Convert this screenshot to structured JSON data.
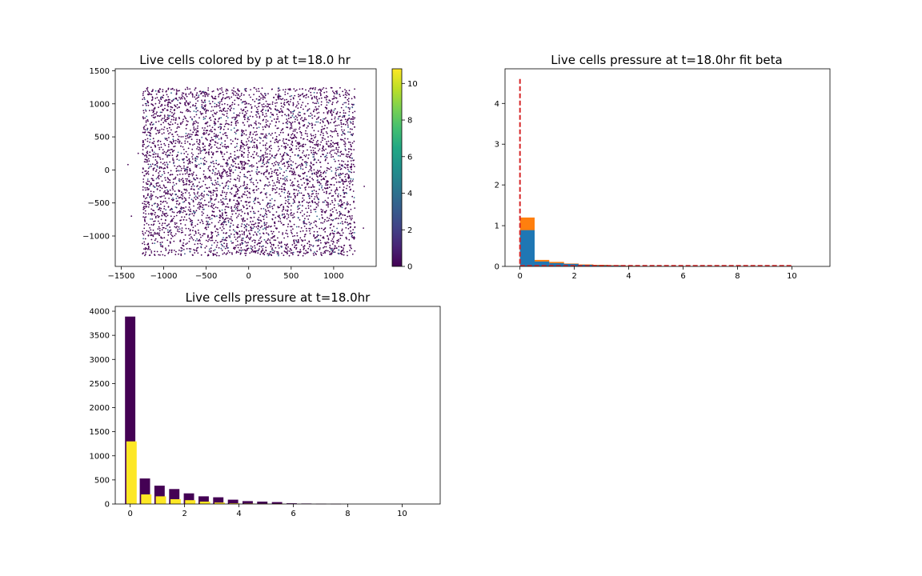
{
  "chart_data": [
    {
      "type": "scatter",
      "title": "Live cells colored by p at t=18.0 hr",
      "xlabel": "",
      "ylabel": "",
      "xlim": [
        -1570,
        1500
      ],
      "ylim": [
        -1460,
        1530
      ],
      "xticks": [
        -1500,
        -1000,
        -500,
        0,
        500,
        1000
      ],
      "yticks": [
        -1000,
        -500,
        0,
        500,
        1000,
        1500
      ],
      "point_distribution": {
        "count": 4600,
        "x_range": [
          -1250,
          1250
        ],
        "y_range": [
          -1300,
          1250
        ],
        "outliers": [
          [
            -1420,
            80
          ],
          [
            -1300,
            250
          ],
          [
            -1380,
            -700
          ],
          [
            1360,
            -250
          ],
          [
            1350,
            -880
          ]
        ]
      },
      "colormap": "viridis",
      "colorbar": {
        "min": 0,
        "max": 10.8,
        "ticks": [
          0,
          2,
          4,
          6,
          8,
          10
        ]
      },
      "colors": {
        "low": "#440154",
        "mid": "#31688e",
        "high": "#fde725"
      }
    },
    {
      "type": "bar",
      "title": "Live cells pressure at t=18.0hr fit beta",
      "xlabel": "",
      "ylabel": "",
      "xlim": [
        -0.55,
        11.4
      ],
      "ylim": [
        0,
        4.85
      ],
      "xticks": [
        0,
        2,
        4,
        6,
        8,
        10
      ],
      "yticks": [
        0,
        1,
        2,
        3,
        4
      ],
      "bin_width": 0.54,
      "bin_left": [
        0,
        0.54,
        1.08,
        1.62,
        2.16,
        2.7,
        3.24,
        3.78,
        4.32,
        4.86,
        5.4,
        5.94
      ],
      "series": [
        {
          "color": "#ff7f0e",
          "values": [
            1.2,
            0.16,
            0.11,
            0.07,
            0.05,
            0.04,
            0.03,
            0.015,
            0.01,
            0.005,
            0.003,
            0.002
          ]
        },
        {
          "color": "#1f77b4",
          "values": [
            0.89,
            0.12,
            0.08,
            0.06,
            0.04,
            0.025,
            0.02,
            0.01,
            0.006,
            0.003,
            0.002,
            0.001
          ]
        }
      ],
      "fit_line": {
        "color": "#d62728",
        "style": "dashed",
        "spike_x": 0,
        "spike_top": 4.6,
        "x_end": 10.0
      }
    },
    {
      "type": "bar",
      "title": "Live cells pressure at t=18.0hr",
      "xlabel": "",
      "ylabel": "",
      "xlim": [
        -0.55,
        11.4
      ],
      "ylim": [
        0,
        4100
      ],
      "xticks": [
        0,
        2,
        4,
        6,
        8,
        10
      ],
      "yticks": [
        0,
        500,
        1000,
        1500,
        2000,
        2500,
        3000,
        3500,
        4000
      ],
      "series": [
        {
          "color": "#440154",
          "x": [
            0,
            0.54,
            1.08,
            1.62,
            2.16,
            2.7,
            3.24,
            3.78,
            4.32,
            4.86,
            5.4,
            5.94,
            6.48,
            7.02,
            7.56
          ],
          "values": [
            3890,
            530,
            380,
            310,
            220,
            160,
            140,
            90,
            60,
            50,
            40,
            15,
            10,
            5,
            3
          ]
        },
        {
          "color": "#fde725",
          "x": [
            0.05,
            0.59,
            1.13,
            1.67,
            2.21,
            2.75,
            3.29,
            3.83,
            4.37,
            4.91,
            5.45
          ],
          "values": [
            1300,
            200,
            160,
            100,
            80,
            50,
            30,
            15,
            10,
            5,
            3
          ]
        }
      ]
    }
  ]
}
